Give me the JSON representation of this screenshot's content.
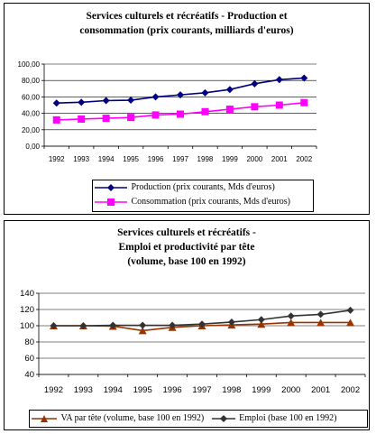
{
  "chart_data": [
    {
      "type": "line",
      "title_lines": [
        "Services culturels et récréatifs  - Production et",
        "consommation (prix courants, milliards d'euros)"
      ],
      "categories": [
        "1992",
        "1993",
        "1994",
        "1995",
        "1996",
        "1997",
        "1998",
        "1999",
        "2000",
        "2001",
        "2002"
      ],
      "ylim": [
        0,
        100
      ],
      "yticks": [
        "0,00",
        "20,00",
        "40,00",
        "60,00",
        "80,00",
        "100,00"
      ],
      "ytick_values": [
        0,
        20,
        40,
        60,
        80,
        100
      ],
      "grid": "horizontal",
      "legend_placement": "bottom",
      "series": [
        {
          "name": "Production  (prix courants, Mds d'euros)",
          "color": "#000080",
          "marker": "diamond",
          "values": [
            52.5,
            53.5,
            55.5,
            56,
            60,
            62.5,
            65,
            69,
            76,
            81,
            83
          ]
        },
        {
          "name": "Consommation (prix courants, Mds d'euros)",
          "color": "#ff00ff",
          "marker": "square",
          "values": [
            32,
            33,
            34,
            35,
            38,
            39,
            42,
            45,
            48,
            50,
            53
          ]
        }
      ]
    },
    {
      "type": "line",
      "title_lines": [
        "Services culturels et récréatifs -",
        "Emploi et productivité par tête",
        "(volume, base 100 en 1992)"
      ],
      "categories": [
        "1992",
        "1993",
        "1994",
        "1995",
        "1996",
        "1997",
        "1998",
        "1999",
        "2000",
        "2001",
        "2002"
      ],
      "ylim": [
        40,
        140
      ],
      "yticks": [
        "40",
        "60",
        "80",
        "100",
        "120",
        "140"
      ],
      "ytick_values": [
        40,
        60,
        80,
        100,
        120,
        140
      ],
      "grid": "horizontal",
      "legend_placement": "bottom",
      "series": [
        {
          "name": "VA par tête (volume, base 100 en 1992)",
          "color": "#993300",
          "marker": "triangle",
          "values": [
            100,
            100,
            99.5,
            94,
            98,
            100,
            101,
            102,
            104,
            104,
            104
          ]
        },
        {
          "name": "Emploi (base 100 en 1992)",
          "color": "#333333",
          "marker": "diamond",
          "values": [
            100,
            100,
            100.5,
            100.5,
            100.5,
            102,
            104.5,
            107.5,
            112,
            114,
            119
          ]
        }
      ]
    }
  ]
}
